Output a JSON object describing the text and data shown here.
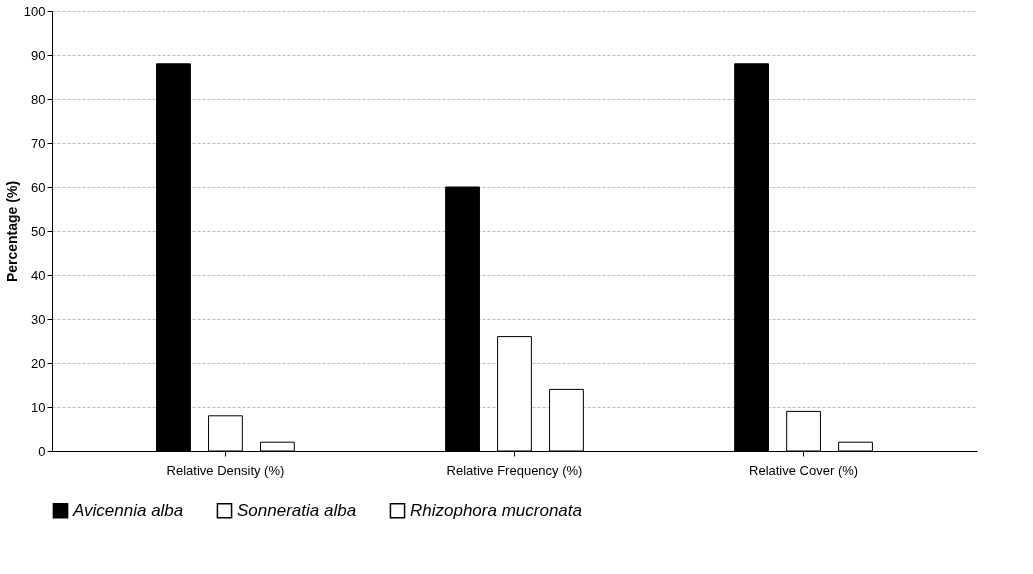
{
  "chart_data": {
    "type": "bar",
    "ylabel": "Percentage (%)",
    "categories": [
      "Relative Density (%)",
      "Relative Frequency (%)",
      "Relative Cover (%)"
    ],
    "series": [
      {
        "name": "Avicennia alba",
        "color": "#000000",
        "values": [
          88,
          60,
          88
        ]
      },
      {
        "name": "Sonneratia alba",
        "color": "#ffffff",
        "values": [
          8,
          26,
          9
        ]
      },
      {
        "name": "Rhizophora mucronata",
        "color": "#ffffff",
        "values": [
          2,
          14,
          2
        ]
      }
    ],
    "ylim": [
      0,
      100
    ],
    "yticks": [
      0,
      10,
      20,
      30,
      40,
      50,
      60,
      70,
      80,
      90,
      100
    ],
    "grid": "y",
    "legend": "bottom"
  }
}
